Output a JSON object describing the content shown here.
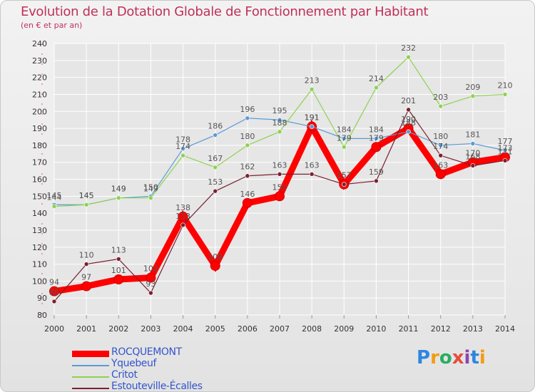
{
  "header": {
    "title": "Evolution de la Dotation Globale de Fonctionnement par Habitant",
    "subtitle": "(en € et par an)"
  },
  "logo": {
    "text": "Proxiti",
    "letters": [
      "P",
      "r",
      "o",
      "x",
      "i",
      "t",
      "i"
    ]
  },
  "colors": {
    "title": "#c0305a",
    "legend_text": "#3355cc",
    "grid": "#ffffff",
    "axis_text": "#333333"
  },
  "chart_data": {
    "type": "line",
    "title": "Evolution de la Dotation Globale de Fonctionnement par Habitant",
    "subtitle": "(en € et par an)",
    "xlabel": "",
    "ylabel": "",
    "x": [
      "2000",
      "2001",
      "2002",
      "2003",
      "2004",
      "2005",
      "2006",
      "2007",
      "2008",
      "2009",
      "2010",
      "2011",
      "2012",
      "2013",
      "2014"
    ],
    "ylim": [
      80,
      240
    ],
    "yticks": [
      80,
      90,
      100,
      110,
      120,
      130,
      140,
      150,
      160,
      170,
      180,
      190,
      200,
      210,
      220,
      230,
      240
    ],
    "grid": true,
    "legend_position": "bottom-left",
    "series": [
      {
        "name": "ROCQUEMONT",
        "color": "#ff0000",
        "label_color": "#555555",
        "values": [
          94,
          97,
          101,
          102,
          138,
          109,
          146,
          150,
          191,
          157,
          179,
          190,
          163,
          170,
          173
        ],
        "labels": [
          "94",
          "97",
          "101",
          "102",
          "138",
          "109",
          "146",
          "150",
          "191",
          "157",
          "179",
          "190",
          "163",
          "170",
          "173"
        ]
      },
      {
        "name": "Yquebeuf",
        "color": "#5b9bd5",
        "label_color": "#555555",
        "values": [
          145,
          145,
          149,
          150,
          178,
          186,
          196,
          195,
          191,
          184,
          184,
          188,
          180,
          181,
          177
        ],
        "labels": [
          "145",
          "145",
          "149",
          "150",
          "178",
          "186",
          "196",
          "195",
          "191",
          "184",
          "184",
          "188",
          "180",
          "181",
          "177"
        ]
      },
      {
        "name": "Critot",
        "color": "#8fd14f",
        "label_color": "#555555",
        "values": [
          144,
          145,
          149,
          149,
          174,
          167,
          180,
          188,
          213,
          179,
          214,
          232,
          203,
          209,
          210
        ],
        "labels": [
          "144",
          "145",
          "149",
          "149",
          "174",
          "167",
          "180",
          "188",
          "213",
          "179",
          "214",
          "232",
          "203",
          "209",
          "210"
        ]
      },
      {
        "name": "Estouteville-Écalles",
        "color": "#7b2030",
        "label_color": "#555555",
        "values": [
          88,
          110,
          113,
          93,
          133,
          153,
          162,
          163,
          163,
          157,
          159,
          201,
          174,
          168,
          171
        ],
        "labels": [
          "88",
          "110",
          "113",
          "93",
          "133",
          "153",
          "162",
          "163",
          "163",
          "157",
          "159",
          "201",
          "174",
          "168",
          "171"
        ]
      }
    ]
  }
}
